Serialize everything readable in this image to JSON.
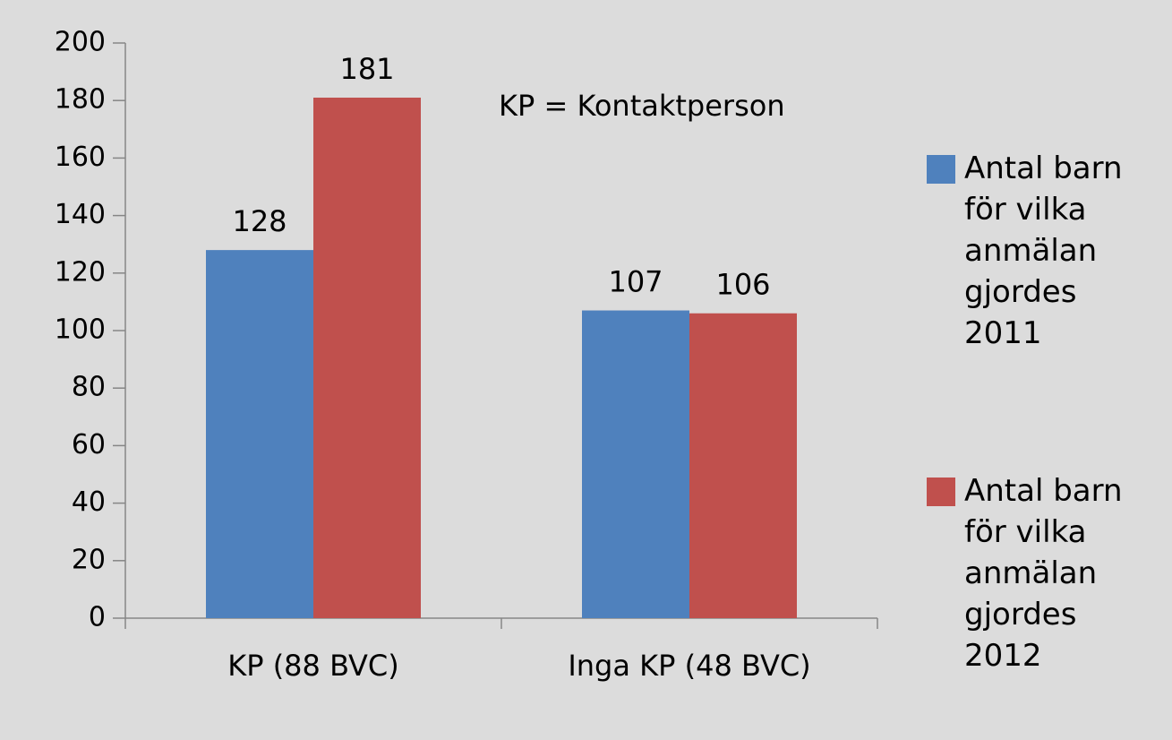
{
  "chart_data": {
    "type": "bar",
    "annotation": "KP = Kontaktperson",
    "categories": [
      "KP (88 BVC)",
      "Inga KP (48 BVC)"
    ],
    "series": [
      {
        "name": "Antal barn för vilka anmälan gjordes 2011",
        "color": "#4f81bd",
        "values": [
          128,
          107
        ]
      },
      {
        "name": "Antal barn för vilka anmälan gjordes 2012",
        "color": "#c0504d",
        "values": [
          181,
          106
        ]
      }
    ],
    "ylim": [
      0,
      200
    ],
    "yticks": [
      0,
      20,
      40,
      60,
      80,
      100,
      120,
      140,
      160,
      180,
      200
    ],
    "grid": false,
    "legend": "right",
    "data_labels": true
  }
}
